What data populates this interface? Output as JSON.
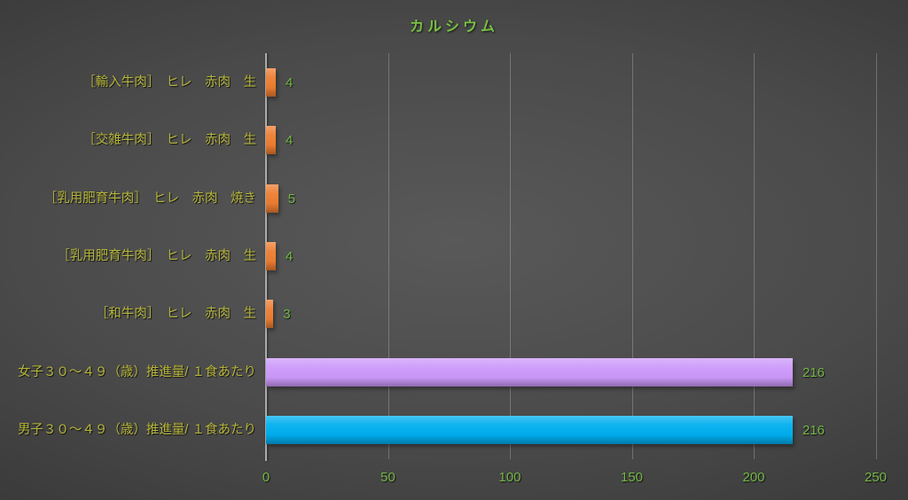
{
  "chart_data": {
    "type": "bar",
    "orientation": "horizontal",
    "title": "カルシウム",
    "categories": [
      "［輸入牛肉］　ヒレ　赤肉　生",
      "［交雑牛肉］　ヒレ　赤肉　生",
      "［乳用肥育牛肉］　ヒレ　赤肉　焼き",
      "［乳用肥育牛肉］　ヒレ　赤肉　生",
      "［和牛肉］　ヒレ　赤肉　生",
      "女子３０～４９（歳）推進量/ １食あたり",
      "男子３０～４９（歳）推進量/ １食あたり"
    ],
    "values": [
      4,
      4,
      5,
      4,
      3,
      216,
      216
    ],
    "data_labels": [
      "4",
      "4",
      "5",
      "4",
      "3",
      "216",
      "216"
    ],
    "bar_colors": [
      "#ED7D31",
      "#ED7D31",
      "#ED7D31",
      "#ED7D31",
      "#ED7D31",
      "#CC99FA",
      "#00AEEF"
    ],
    "xlabel": "",
    "ylabel": "",
    "xlim": [
      0,
      250
    ],
    "xticks": [
      0,
      50,
      100,
      150,
      200,
      250
    ],
    "grid": true,
    "legend": false
  },
  "colors": {
    "title_text": "#79C243",
    "category_text": "#B6B53C",
    "value_text": "#74B845",
    "axis_line": "#ABABAB",
    "gridline": "#B9B9B9",
    "background_center": "#595959",
    "background_edge": "#262626",
    "bar_orange": "#ED7D31",
    "bar_purple": "#CC99FA",
    "bar_blue": "#00AEEF"
  }
}
